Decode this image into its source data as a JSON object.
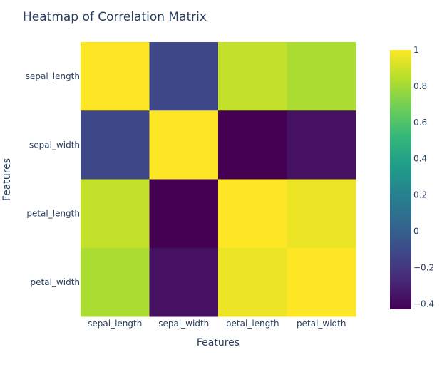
{
  "chart_data": {
    "type": "heatmap",
    "title": "Heatmap of Correlation Matrix",
    "xlabel": "Features",
    "ylabel": "Features",
    "x_categories": [
      "sepal_length",
      "sepal_width",
      "petal_length",
      "petal_width"
    ],
    "y_categories": [
      "sepal_length",
      "sepal_width",
      "petal_length",
      "petal_width"
    ],
    "z": [
      [
        1.0,
        -0.11757,
        0.871754,
        0.817941
      ],
      [
        -0.11757,
        1.0,
        -0.42844,
        -0.366126
      ],
      [
        0.871754,
        -0.42844,
        1.0,
        0.962865
      ],
      [
        0.817941,
        -0.366126,
        0.962865,
        1.0
      ]
    ],
    "zmin": -0.43,
    "zmax": 1.0,
    "colorscale": "Viridis",
    "colorbar": {
      "ticks": [
        1,
        0.8,
        0.6,
        0.4,
        0.2,
        0,
        -0.2,
        -0.4
      ],
      "tick_labels": [
        "1",
        "0.8",
        "0.6",
        "0.4",
        "0.2",
        "0",
        "−0.2",
        "−0.4"
      ]
    },
    "colors": {
      "text": "#2a3f5f",
      "title": "#2a3f5f",
      "background": "#ffffff"
    }
  }
}
